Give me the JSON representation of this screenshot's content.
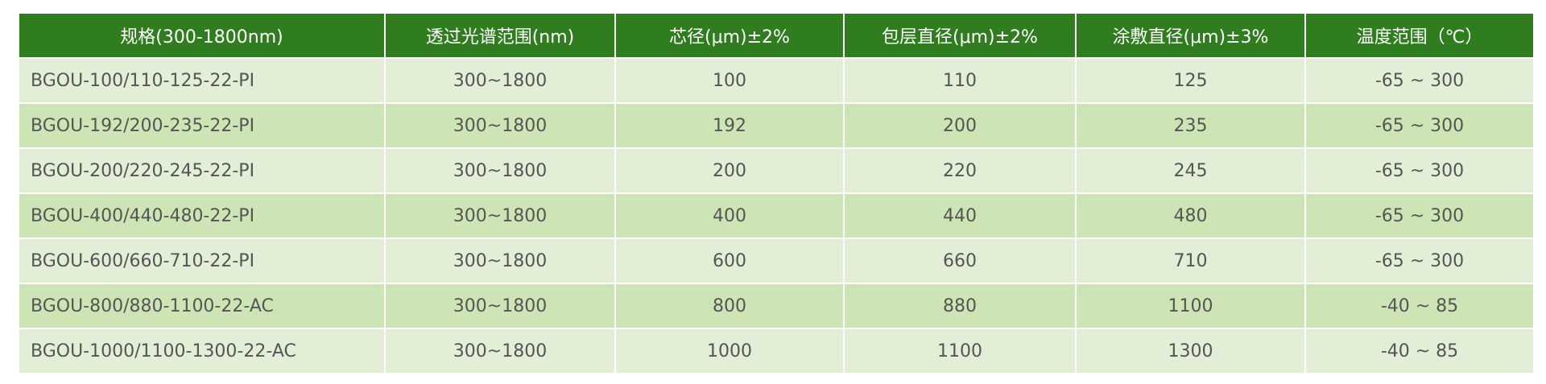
{
  "table": {
    "headers": [
      "规格(300-1800nm)",
      "透过光谱范围(nm)",
      "芯径(μm)±2%",
      "包层直径(μm)±2%",
      "涂敷直径(μm)±3%",
      "温度范围（℃）"
    ],
    "rows": [
      [
        "BGOU-100/110-125-22-PI",
        "300~1800",
        "100",
        "110",
        "125",
        "-65 ~ 300"
      ],
      [
        "BGOU-192/200-235-22-PI",
        "300~1800",
        "192",
        "200",
        "235",
        "-65 ~ 300"
      ],
      [
        "BGOU-200/220-245-22-PI",
        "300~1800",
        "200",
        "220",
        "245",
        "-65 ~ 300"
      ],
      [
        "BGOU-400/440-480-22-PI",
        "300~1800",
        "400",
        "440",
        "480",
        "-65 ~ 300"
      ],
      [
        "BGOU-600/660-710-22-PI",
        "300~1800",
        "600",
        "660",
        "710",
        "-65 ~ 300"
      ],
      [
        "BGOU-800/880-1100-22-AC",
        "300~1800",
        "800",
        "880",
        "1100",
        "-40 ~ 85"
      ],
      [
        "BGOU-1000/1100-1300-22-AC",
        "300~1800",
        "1000",
        "1100",
        "1300",
        "-40 ~ 85"
      ]
    ]
  },
  "colors": {
    "header_bg": "#2f7d1f",
    "row_light": "#e2efd6",
    "row_dark": "#cde5b4"
  }
}
